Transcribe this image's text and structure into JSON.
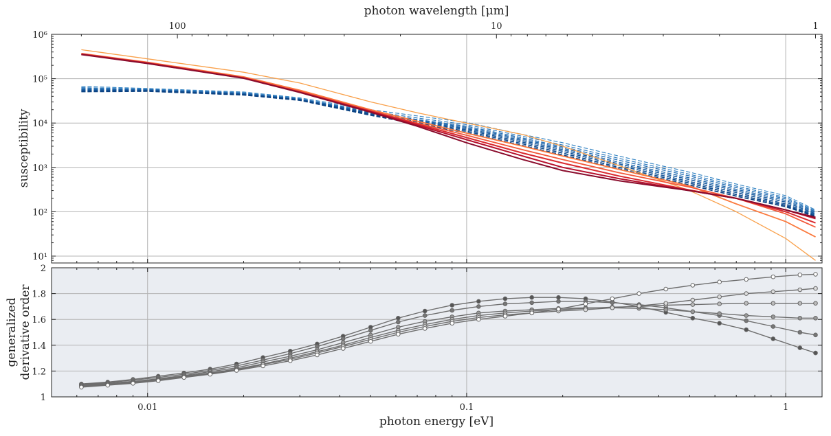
{
  "chart_data": [
    {
      "type": "line",
      "panel": "top",
      "xscale": "log",
      "yscale": "log",
      "xlim": [
        0.005,
        1.3
      ],
      "ylim": [
        7,
        1000000
      ],
      "grid": true,
      "ylabel": "susceptibility",
      "top_axis": {
        "label": "photon wavelength [μm]",
        "ticks": [
          {
            "x": 0.0124,
            "label": "100"
          },
          {
            "x": 0.124,
            "label": "10"
          },
          {
            "x": 1.24,
            "label": "1"
          }
        ]
      },
      "yticks": [
        {
          "y": 10,
          "label": "10¹"
        },
        {
          "y": 100,
          "label": "10²"
        },
        {
          "y": 1000,
          "label": "10³"
        },
        {
          "y": 10000,
          "label": "10⁴"
        },
        {
          "y": 100000,
          "label": "10⁵"
        },
        {
          "y": 1000000,
          "label": "10⁶"
        }
      ],
      "x": [
        0.0062,
        0.01,
        0.02,
        0.03,
        0.05,
        0.07,
        0.1,
        0.15,
        0.2,
        0.3,
        0.5,
        0.7,
        1.0,
        1.24
      ],
      "series": [
        {
          "style": "solid",
          "color": "#f9a04a",
          "width": 1.3,
          "values": [
            450000,
            280000,
            140000,
            80000,
            30000,
            17000,
            10000,
            5500,
            3000,
            1100,
            300,
            100,
            25,
            8
          ]
        },
        {
          "style": "solid",
          "color": "#fb7a3e",
          "width": 1.8,
          "values": [
            370000,
            235000,
            110000,
            55000,
            20000,
            11000,
            5900,
            3000,
            1800,
            900,
            380,
            150,
            60,
            27
          ]
        },
        {
          "style": "solid",
          "color": "#f2583a",
          "width": 1.8,
          "values": [
            365000,
            230000,
            106000,
            52000,
            19000,
            10000,
            5300,
            2500,
            1500,
            760,
            360,
            200,
            90,
            45
          ]
        },
        {
          "style": "solid",
          "color": "#d9292f",
          "width": 2.0,
          "values": [
            360000,
            225000,
            104000,
            50000,
            18500,
            9500,
            4700,
            2100,
            1250,
            640,
            310,
            200,
            100,
            56
          ]
        },
        {
          "style": "solid",
          "color": "#b5112d",
          "width": 2.0,
          "values": [
            355000,
            222000,
            103000,
            49500,
            18000,
            9000,
            4200,
            1800,
            1000,
            560,
            300,
            200,
            110,
            70
          ]
        },
        {
          "style": "solid",
          "color": "#8a0c2c",
          "width": 2.0,
          "values": [
            350000,
            220000,
            102000,
            49000,
            17500,
            8500,
            3600,
            1500,
            850,
            500,
            300,
            200,
            110,
            75
          ]
        },
        {
          "style": "dashed",
          "color": "#3a88c5",
          "width": 1.2,
          "values": [
            67000,
            60000,
            50000,
            37000,
            20000,
            14500,
            10300,
            5500,
            3600,
            1800,
            780,
            420,
            230,
            110
          ]
        },
        {
          "style": "dashed",
          "color": "#2f7bbd",
          "width": 1.2,
          "values": [
            63000,
            58000,
            48000,
            35500,
            18500,
            13000,
            9200,
            5000,
            3200,
            1600,
            700,
            380,
            210,
            105
          ]
        },
        {
          "style": "dashed",
          "color": "#2670b5",
          "width": 1.4,
          "values": [
            60000,
            57000,
            47000,
            35000,
            17500,
            12000,
            8500,
            4600,
            2900,
            1450,
            640,
            350,
            195,
            100
          ]
        },
        {
          "style": "dashed",
          "color": "#1f66aa",
          "width": 1.4,
          "values": [
            58000,
            56000,
            46000,
            34500,
            17000,
            11500,
            8000,
            4300,
            2700,
            1300,
            580,
            320,
            180,
            95
          ]
        },
        {
          "style": "dashed",
          "color": "#195ca0",
          "width": 1.6,
          "values": [
            56000,
            55000,
            45000,
            34000,
            16500,
            11000,
            7500,
            4000,
            2500,
            1200,
            530,
            295,
            165,
            90
          ]
        },
        {
          "style": "dashed",
          "color": "#135296",
          "width": 1.6,
          "values": [
            54000,
            54000,
            44000,
            33500,
            16000,
            10500,
            7000,
            3700,
            2300,
            1100,
            480,
            270,
            150,
            85
          ]
        },
        {
          "style": "dashed",
          "color": "#0e4a8c",
          "width": 1.8,
          "values": [
            52000,
            53000,
            43500,
            33000,
            15500,
            10000,
            6500,
            3400,
            2100,
            1000,
            440,
            245,
            140,
            80
          ]
        },
        {
          "style": "dashed",
          "color": "#0b4282",
          "width": 1.8,
          "values": [
            51000,
            52000,
            43000,
            32500,
            15000,
            9500,
            6000,
            3100,
            1900,
            920,
            400,
            225,
            130,
            78
          ]
        }
      ]
    },
    {
      "type": "line",
      "panel": "bottom",
      "xscale": "log",
      "xlim": [
        0.005,
        1.3
      ],
      "ylim": [
        1.0,
        2.0
      ],
      "grid": true,
      "xlabel": "photon energy [eV]",
      "ylabel": [
        "generalized",
        "derivative order"
      ],
      "xticks": [
        {
          "x": 0.01,
          "label": "0.01"
        },
        {
          "x": 0.1,
          "label": "0.1"
        },
        {
          "x": 1,
          "label": "1"
        }
      ],
      "yticks": [
        {
          "y": 1.0,
          "label": "1"
        },
        {
          "y": 1.2,
          "label": "1.2"
        },
        {
          "y": 1.4,
          "label": "1.4"
        },
        {
          "y": 1.6,
          "label": "1.6"
        },
        {
          "y": 1.8,
          "label": "1.8"
        },
        {
          "y": 2.0,
          "label": "2"
        }
      ],
      "x": [
        0.0062,
        0.0075,
        0.009,
        0.0108,
        0.013,
        0.0157,
        0.019,
        0.023,
        0.028,
        0.034,
        0.041,
        0.05,
        0.061,
        0.074,
        0.09,
        0.109,
        0.132,
        0.16,
        0.194,
        0.236,
        0.286,
        0.347,
        0.421,
        0.511,
        0.62,
        0.752,
        0.913,
        1.108,
        1.24
      ],
      "series": [
        {
          "marker_fill": "#555555",
          "values": [
            1.1,
            1.115,
            1.135,
            1.16,
            1.185,
            1.215,
            1.255,
            1.305,
            1.355,
            1.41,
            1.47,
            1.54,
            1.61,
            1.665,
            1.71,
            1.74,
            1.76,
            1.77,
            1.77,
            1.76,
            1.735,
            1.7,
            1.655,
            1.61,
            1.57,
            1.52,
            1.45,
            1.38,
            1.34
          ]
        },
        {
          "marker_fill": "#777777",
          "values": [
            1.095,
            1.11,
            1.13,
            1.15,
            1.175,
            1.205,
            1.24,
            1.285,
            1.335,
            1.39,
            1.45,
            1.515,
            1.58,
            1.63,
            1.67,
            1.7,
            1.72,
            1.73,
            1.74,
            1.74,
            1.73,
            1.715,
            1.69,
            1.66,
            1.63,
            1.59,
            1.545,
            1.5,
            1.48
          ]
        },
        {
          "marker_fill": "#999999",
          "values": [
            1.09,
            1.105,
            1.12,
            1.14,
            1.165,
            1.195,
            1.225,
            1.27,
            1.315,
            1.365,
            1.42,
            1.48,
            1.54,
            1.585,
            1.62,
            1.65,
            1.665,
            1.675,
            1.685,
            1.69,
            1.69,
            1.685,
            1.675,
            1.66,
            1.645,
            1.63,
            1.62,
            1.61,
            1.61
          ]
        },
        {
          "marker_fill": "#bbbbbb",
          "values": [
            1.085,
            1.1,
            1.115,
            1.135,
            1.16,
            1.185,
            1.215,
            1.255,
            1.3,
            1.35,
            1.4,
            1.46,
            1.515,
            1.56,
            1.6,
            1.63,
            1.65,
            1.665,
            1.675,
            1.685,
            1.695,
            1.7,
            1.71,
            1.715,
            1.72,
            1.725,
            1.725,
            1.725,
            1.725
          ]
        },
        {
          "marker_fill": "#dddddd",
          "values": [
            1.08,
            1.095,
            1.11,
            1.13,
            1.155,
            1.18,
            1.21,
            1.25,
            1.29,
            1.34,
            1.39,
            1.445,
            1.5,
            1.545,
            1.585,
            1.615,
            1.635,
            1.65,
            1.665,
            1.675,
            1.69,
            1.705,
            1.725,
            1.75,
            1.775,
            1.8,
            1.815,
            1.83,
            1.84
          ]
        },
        {
          "marker_fill": "#ffffff",
          "values": [
            1.075,
            1.09,
            1.105,
            1.125,
            1.15,
            1.175,
            1.205,
            1.24,
            1.28,
            1.325,
            1.375,
            1.43,
            1.485,
            1.53,
            1.57,
            1.6,
            1.625,
            1.65,
            1.68,
            1.72,
            1.76,
            1.8,
            1.835,
            1.865,
            1.89,
            1.91,
            1.93,
            1.945,
            1.95
          ]
        }
      ]
    }
  ]
}
